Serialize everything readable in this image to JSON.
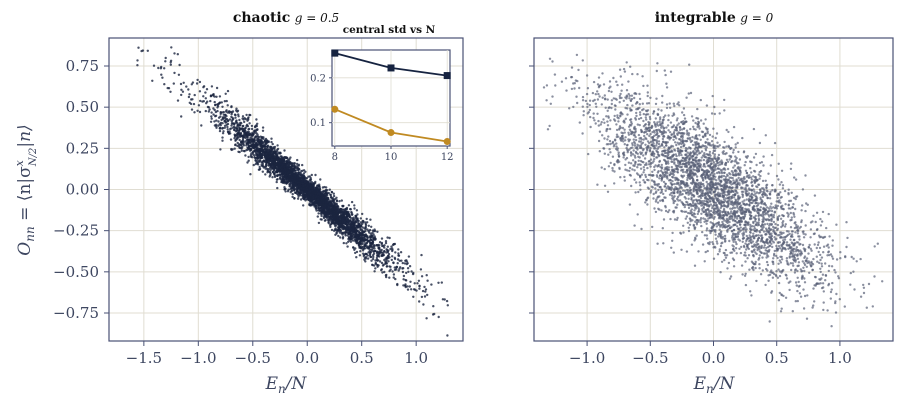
{
  "colors": {
    "chaotic_points": "#1b2540",
    "integrable_points": "#5a6178",
    "frame": "#4a5275",
    "grid": "#e0ddd2",
    "tick_text": "#3d4660",
    "inset_series_1": "#162340",
    "inset_series_2": "#c08a22"
  },
  "chart_data": [
    {
      "type": "scatter",
      "title_bold": "chaotic",
      "title_math": "g = 0.5",
      "xlabel": "E_n/N",
      "ylabel": "O_nn = ⟨n|σ^x_{N/2}|n⟩",
      "xlim": [
        -1.82,
        1.43
      ],
      "ylim": [
        -0.92,
        0.92
      ],
      "xticks": [
        -1.5,
        -1.0,
        -0.5,
        0.0,
        0.5,
        1.0
      ],
      "xtick_labels": [
        "−1.5",
        "−1.0",
        "−0.5",
        "0.0",
        "0.5",
        "1.0"
      ],
      "yticks": [
        0.75,
        0.5,
        0.25,
        0.0,
        -0.25,
        -0.5,
        -0.75
      ],
      "ytick_labels": [
        "0.75",
        "0.50",
        "0.25",
        "0.00",
        "−0.25",
        "−0.50",
        "−0.75"
      ],
      "grid": true,
      "n_points": 4096,
      "trend": {
        "slope": -0.56,
        "intercept": 0.0
      },
      "scatter_sd": {
        "center": 0.035,
        "edge": 0.085
      },
      "point_color": "#1b2540"
    },
    {
      "type": "scatter",
      "title_bold": "integrable",
      "title_math": "g = 0",
      "xlabel": "E_n/N",
      "xlim": [
        -1.42,
        1.42
      ],
      "ylim": [
        -0.92,
        0.92
      ],
      "xticks": [
        -1.0,
        -0.5,
        0.0,
        0.5,
        1.0
      ],
      "xtick_labels": [
        "−1.0",
        "−0.5",
        "0.0",
        "0.5",
        "1.0"
      ],
      "yticks": [
        0.75,
        0.5,
        0.25,
        0.0,
        -0.25,
        -0.5,
        -0.75
      ],
      "shared_y": true,
      "grid": true,
      "n_points": 3600,
      "trend": {
        "slope": -0.5,
        "intercept": 0.0
      },
      "scatter_sd": {
        "center": 0.18,
        "edge": 0.15
      },
      "point_color": "#5a6178"
    },
    {
      "type": "line",
      "title": "central std vs N",
      "x": [
        8,
        10,
        12
      ],
      "xtick_labels": [
        "8",
        "10",
        "12"
      ],
      "yticks": [
        0.1,
        0.2
      ],
      "ytick_labels": [
        "0.1",
        "0.2"
      ],
      "xlim": [
        7.9,
        12.1
      ],
      "ylim": [
        0.048,
        0.262
      ],
      "series": [
        {
          "values": [
            0.255,
            0.222,
            0.205
          ],
          "color": "#162340",
          "marker": "square"
        },
        {
          "values": [
            0.13,
            0.078,
            0.058
          ],
          "color": "#c08a22",
          "marker": "circle"
        }
      ]
    }
  ]
}
